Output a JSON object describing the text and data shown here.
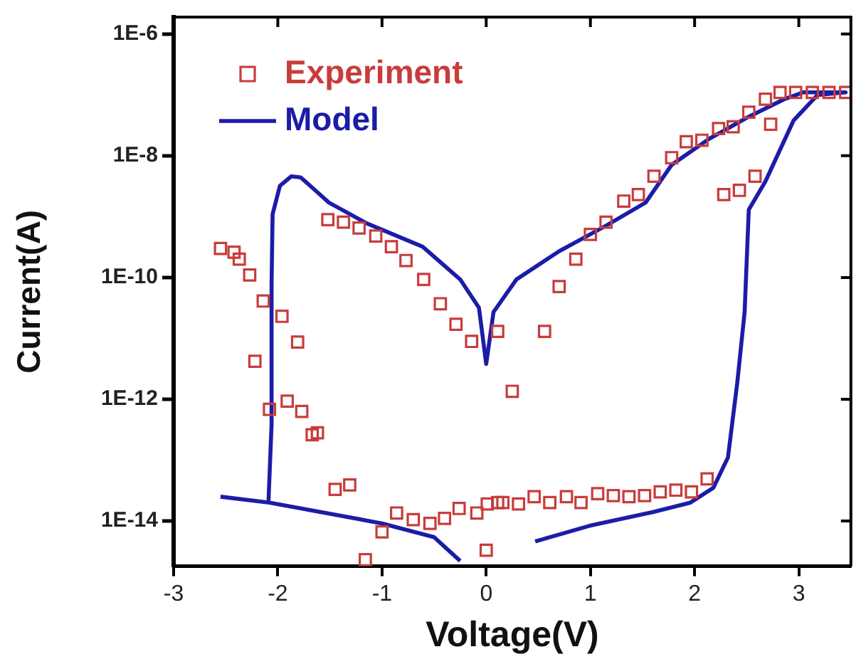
{
  "chart_data": {
    "type": "scatter",
    "xlabel": "Voltage(V)",
    "ylabel": "Current(A)",
    "log": "y",
    "marker": "square",
    "legend": "top left",
    "grid": false,
    "xlim": [
      -3,
      3.5
    ],
    "xticks": [
      -3,
      -2,
      -1,
      0,
      1,
      2,
      3
    ],
    "ylim": [
      1.8e-15,
      1.9e-06
    ],
    "yticks": [
      {
        "value": 1e-14,
        "label": "1E-14"
      },
      {
        "value": 1e-12,
        "label": "1E-12"
      },
      {
        "value": 1e-10,
        "label": "1E-10"
      },
      {
        "value": 1e-08,
        "label": "1E-8"
      },
      {
        "value": 1e-06,
        "label": "1E-6"
      }
    ],
    "series": [
      {
        "name": "Experiment",
        "type": "scatter",
        "color": "#c83c3c",
        "x": [
          -2.55,
          -2.42,
          -2.37,
          -2.27,
          -2.14,
          -1.96,
          -1.81,
          -2.22,
          -2.08,
          -1.91,
          -1.77,
          -1.67,
          -1.62,
          -1.45,
          -1.31,
          -1.16,
          -1.0,
          -0.86,
          -0.7,
          -0.54,
          -0.4,
          -0.26,
          -0.09,
          0.01,
          0.0,
          0.11,
          0.16,
          0.31,
          0.46,
          0.61,
          0.77,
          0.91,
          1.07,
          1.22,
          1.37,
          1.52,
          1.67,
          1.82,
          1.97,
          2.12,
          0.25,
          0.56,
          -0.14,
          0.11,
          -1.52,
          -1.37,
          -1.22,
          -1.06,
          -0.91,
          -0.77,
          -0.6,
          -0.44,
          -0.29,
          0.7,
          0.86,
          1.0,
          1.15,
          1.32,
          1.46,
          1.61,
          1.78,
          1.92,
          2.07,
          2.23,
          2.37,
          2.52,
          2.68,
          2.82,
          2.97,
          3.13,
          3.29,
          3.45,
          2.73,
          2.58,
          2.43,
          2.28
        ],
        "values": [
          3e-10,
          2.6e-10,
          2e-10,
          1.1e-10,
          4.1e-11,
          2.3e-11,
          8.7e-12,
          4.2e-12,
          6.8e-13,
          9.3e-13,
          6.3e-13,
          2.6e-13,
          2.8e-13,
          3.3e-14,
          3.9e-14,
          2.3e-15,
          6.6e-15,
          1.35e-14,
          1.05e-14,
          9.1e-15,
          1.1e-14,
          1.6e-14,
          1.35e-14,
          1.9e-14,
          3.3e-15,
          2e-14,
          2e-14,
          1.9e-14,
          2.5e-14,
          2e-14,
          2.5e-14,
          2e-14,
          2.8e-14,
          2.6e-14,
          2.5e-14,
          2.6e-14,
          3e-14,
          3.2e-14,
          3e-14,
          4.9e-14,
          1.35e-12,
          1.3e-11,
          8.9e-12,
          1.3e-11,
          8.9e-10,
          8.1e-10,
          6.5e-10,
          4.8e-10,
          3.2e-10,
          1.9e-10,
          9.3e-11,
          3.7e-11,
          1.7e-11,
          7.1e-11,
          2e-10,
          5.1e-10,
          8.1e-10,
          1.8e-09,
          2.3e-09,
          4.6e-09,
          9.3e-09,
          1.7e-08,
          1.8e-08,
          2.8e-08,
          3e-08,
          5.2e-08,
          8.5e-08,
          1.1e-07,
          1.1e-07,
          1.1e-07,
          1.1e-07,
          1.1e-07,
          3.3e-08,
          4.6e-09,
          2.7e-09,
          2.3e-09
        ]
      },
      {
        "name": "Model",
        "type": "line",
        "color": "#1c1ca8",
        "marker": "none",
        "x": [
          -2.55,
          -2.08,
          -1.0,
          -0.5,
          -0.25,
          0.0,
          0.47,
          0.99,
          1.6,
          1.96,
          2.18,
          2.32,
          2.41,
          2.48,
          2.52,
          2.68,
          2.95,
          3.18,
          3.45,
          3.04,
          2.86,
          2.5,
          2.14,
          1.78,
          1.53,
          1.15,
          0.7,
          0.29,
          0.07,
          0.0,
          -0.07,
          -0.25,
          -0.61,
          -1.15,
          -1.51,
          -1.64,
          -1.78,
          -1.87,
          -1.98,
          -2.05,
          -2.06,
          -2.06,
          -2.09
        ],
        "values": [
          2.5e-14,
          2e-14,
          9.1e-15,
          5.4e-15,
          2.2e-15,
          null,
          4.6e-15,
          8.3e-15,
          1.4e-14,
          2e-14,
          3.5e-14,
          1.1e-13,
          1.9e-12,
          2.7e-11,
          1.3e-09,
          3.8e-09,
          3.8e-08,
          1e-07,
          1.1e-07,
          1.1e-07,
          8.5e-08,
          4.2e-08,
          1.9e-08,
          7.1e-09,
          1.7e-09,
          7.1e-10,
          2.7e-10,
          9.3e-11,
          2.7e-11,
          3.8e-12,
          3.2e-11,
          9.3e-11,
          3.2e-10,
          7.8e-10,
          1.7e-09,
          2.7e-09,
          4.4e-09,
          4.6e-09,
          3.2e-09,
          1.1e-09,
          7.8e-11,
          3.8e-13,
          2e-14
        ]
      }
    ]
  }
}
